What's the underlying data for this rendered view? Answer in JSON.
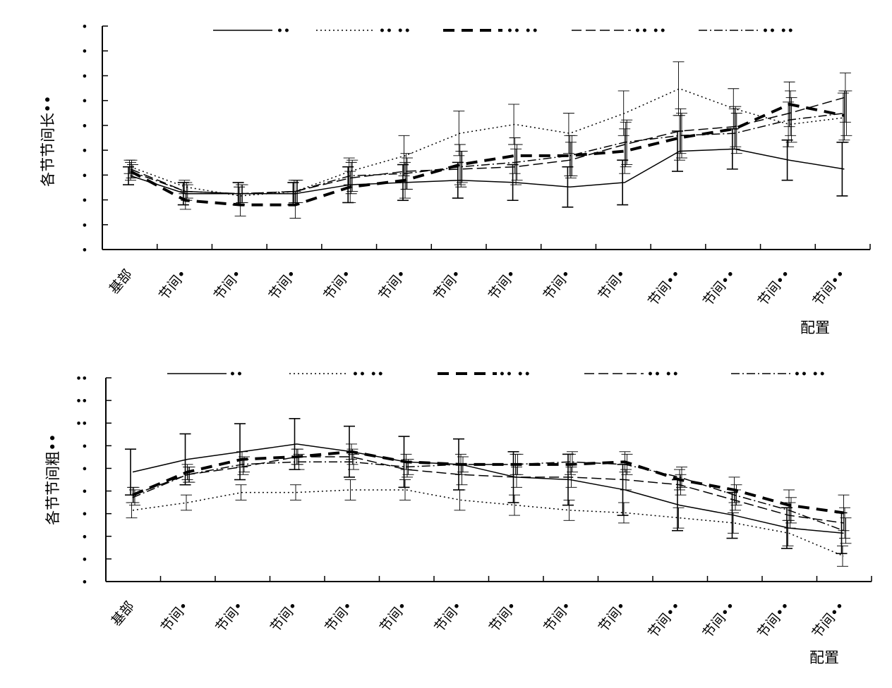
{
  "chart_data": [
    {
      "type": "line",
      "ylabel": "各节节间长••",
      "xlabel": "配置",
      "categories": [
        "基部",
        "节间•",
        "节间•",
        "节间•",
        "节间•",
        "节间•",
        "节间•",
        "节间•",
        "节间•",
        "节间•",
        "节间••",
        "节间••",
        "节间••",
        "节间••"
      ],
      "y_tick_labels": [
        "•",
        "•",
        "•",
        "•",
        "•",
        "•",
        "•",
        "•",
        "•",
        "•"
      ],
      "ylim": [
        0,
        10
      ],
      "legend_placement": "top",
      "series": [
        {
          "name": "••",
          "style": "solid",
          "values": [
            3.3,
            2.5,
            2.5,
            2.5,
            2.9,
            3.0,
            3.1,
            3.0,
            2.8,
            3.0,
            4.4,
            4.5,
            4.0,
            3.6
          ],
          "err": [
            0.4,
            0.5,
            0.5,
            0.5,
            0.8,
            0.8,
            0.8,
            0.8,
            0.9,
            1.0,
            0.9,
            0.9,
            0.9,
            1.2
          ]
        },
        {
          "name": "•• ••",
          "style": "dotted",
          "values": [
            3.7,
            2.8,
            2.4,
            2.6,
            3.5,
            4.2,
            5.2,
            5.6,
            5.2,
            6.1,
            7.2,
            6.3,
            5.6,
            5.9
          ],
          "err": [
            0.3,
            0.3,
            0.4,
            0.5,
            0.6,
            0.9,
            1.0,
            0.9,
            0.9,
            1.0,
            1.2,
            0.9,
            1.0,
            1.1
          ]
        },
        {
          "name": "•• ••",
          "style": "thick-dashed",
          "values": [
            3.5,
            2.2,
            2.0,
            2.0,
            2.8,
            3.1,
            3.8,
            4.2,
            4.2,
            4.4,
            5.0,
            5.4,
            6.5,
            6.0
          ],
          "err": [
            0.4,
            0.4,
            0.5,
            0.6,
            0.7,
            0.8,
            0.9,
            0.8,
            0.9,
            1.0,
            1.0,
            0.9,
            1.0,
            1.1
          ]
        },
        {
          "name": "•• ••",
          "style": "dashed",
          "values": [
            3.6,
            2.6,
            2.5,
            2.6,
            3.2,
            3.5,
            3.6,
            3.7,
            4.0,
            4.7,
            5.3,
            5.5,
            6.1,
            6.8
          ],
          "err": [
            0.4,
            0.4,
            0.4,
            0.5,
            0.7,
            0.8,
            0.8,
            0.8,
            0.8,
            1.0,
            1.0,
            0.9,
            1.0,
            1.1
          ]
        },
        {
          "name": "•• ••",
          "style": "dashdot",
          "values": [
            3.5,
            2.6,
            2.5,
            2.6,
            3.3,
            3.4,
            3.7,
            3.9,
            4.2,
            4.8,
            5.1,
            5.2,
            5.8,
            6.1
          ],
          "err": [
            0.3,
            0.3,
            0.4,
            0.5,
            0.7,
            0.7,
            0.7,
            0.8,
            0.9,
            1.0,
            1.0,
            0.9,
            1.0,
            1.0
          ]
        }
      ]
    },
    {
      "type": "line",
      "ylabel": "各节节间粗••",
      "xlabel": "配置",
      "categories": [
        "基部",
        "节间•",
        "节间•",
        "节间•",
        "节间•",
        "节间•",
        "节间•",
        "节间•",
        "节间•",
        "节间•",
        "节间••",
        "节间••",
        "节间••",
        "节间••"
      ],
      "y_tick_labels": [
        "•",
        "•",
        "•",
        "•",
        "•",
        "•",
        "•",
        "••",
        "••",
        "••"
      ],
      "ylim": [
        0,
        8
      ],
      "legend_placement": "top",
      "series": [
        {
          "name": "••",
          "style": "solid",
          "values": [
            4.3,
            4.8,
            5.1,
            5.4,
            5.1,
            4.7,
            4.6,
            4.1,
            4.0,
            3.6,
            3.0,
            2.6,
            2.1,
            1.9
          ],
          "err": [
            0.9,
            1.0,
            1.1,
            1.0,
            1.0,
            1.0,
            1.0,
            1.0,
            1.0,
            1.0,
            1.0,
            0.9,
            0.8,
            0.8
          ]
        },
        {
          "name": "•• ••",
          "style": "dotted",
          "values": [
            2.8,
            3.1,
            3.5,
            3.5,
            3.6,
            3.6,
            3.2,
            3.0,
            2.8,
            2.7,
            2.5,
            2.3,
            1.9,
            1.0
          ],
          "err": [
            0.3,
            0.3,
            0.3,
            0.3,
            0.4,
            0.4,
            0.4,
            0.4,
            0.4,
            0.4,
            0.4,
            0.4,
            0.5,
            0.4
          ]
        },
        {
          "name": "•• ••",
          "style": "thick-dashed",
          "values": [
            3.4,
            4.3,
            4.8,
            4.9,
            5.1,
            4.7,
            4.6,
            4.6,
            4.6,
            4.7,
            4.0,
            3.6,
            3.0,
            2.7
          ],
          "err": [
            0.3,
            0.3,
            0.3,
            0.3,
            0.3,
            0.3,
            0.4,
            0.4,
            0.4,
            0.4,
            0.4,
            0.5,
            0.6,
            0.7
          ]
        },
        {
          "name": "•• ••",
          "style": "dashed",
          "values": [
            3.4,
            4.2,
            4.5,
            4.9,
            4.9,
            4.4,
            4.2,
            4.1,
            4.1,
            4.0,
            3.8,
            3.2,
            2.6,
            2.3
          ],
          "err": [
            0.3,
            0.3,
            0.3,
            0.3,
            0.3,
            0.3,
            0.4,
            0.4,
            0.4,
            0.4,
            0.4,
            0.4,
            0.5,
            0.6
          ]
        },
        {
          "name": "•• ••",
          "style": "dashdot",
          "values": [
            3.3,
            4.2,
            4.6,
            4.7,
            4.7,
            4.5,
            4.6,
            4.6,
            4.7,
            4.6,
            4.1,
            3.4,
            2.8,
            2.0
          ],
          "err": [
            0.3,
            0.3,
            0.3,
            0.3,
            0.3,
            0.3,
            0.3,
            0.4,
            0.4,
            0.4,
            0.4,
            0.4,
            0.5,
            0.5
          ]
        }
      ]
    }
  ]
}
